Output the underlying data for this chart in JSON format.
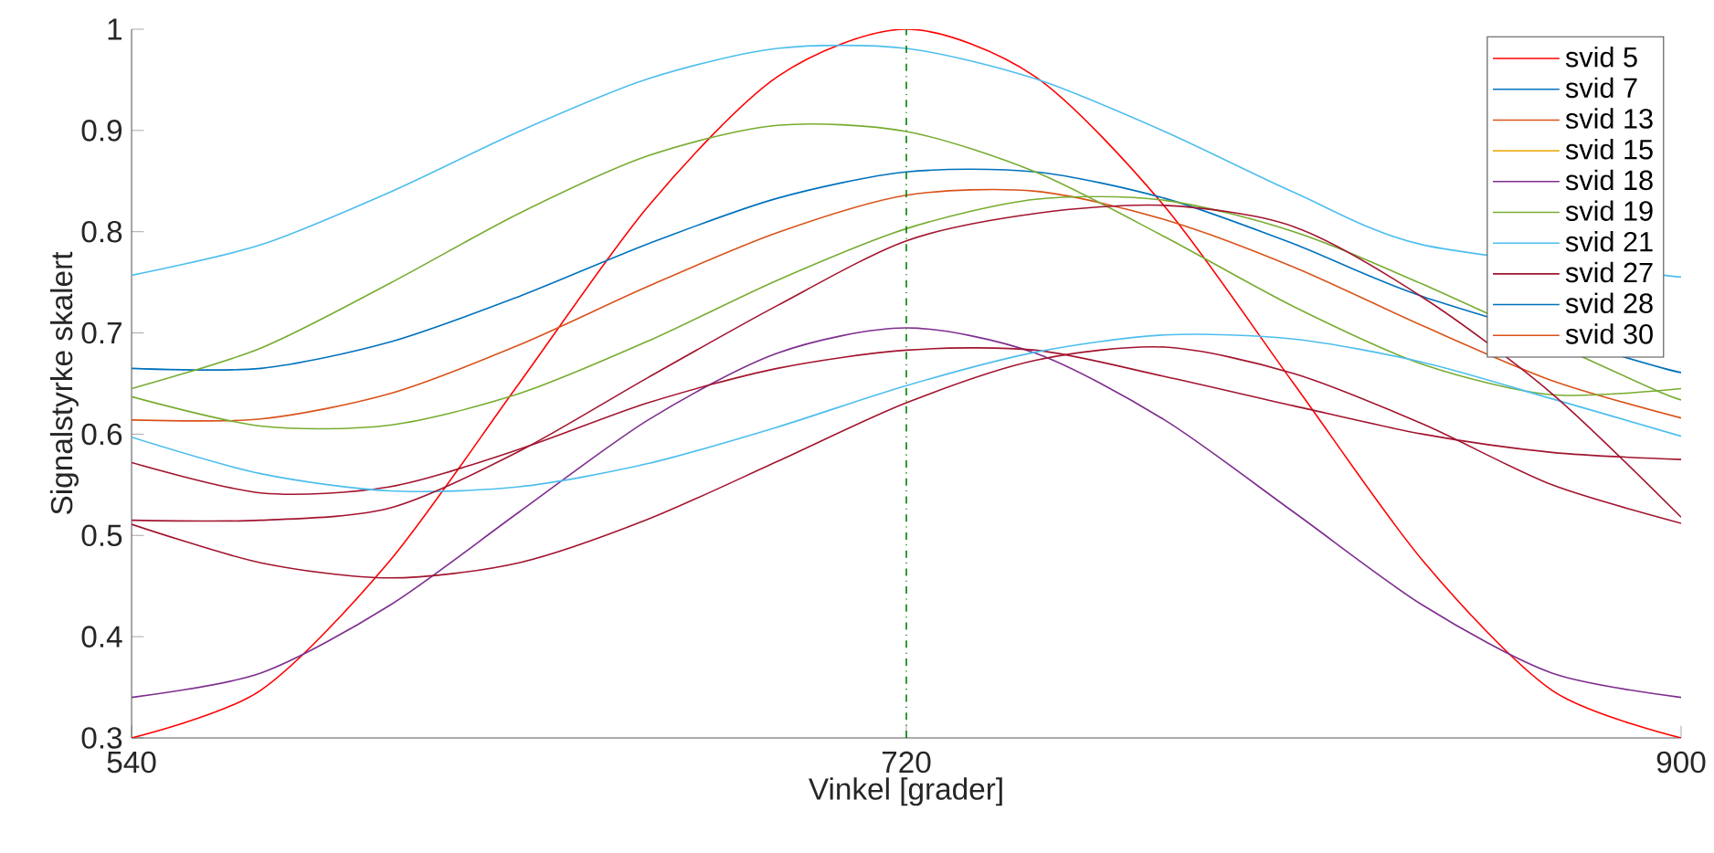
{
  "chart_data": {
    "type": "line",
    "xlabel": "Vinkel [grader]",
    "ylabel": "Signalstyrke skalert",
    "x": [
      540,
      570,
      600,
      630,
      660,
      690,
      720,
      750,
      780,
      810,
      840,
      870,
      900
    ],
    "xlim": [
      540,
      900
    ],
    "xticks": [
      540,
      720,
      900
    ],
    "ylim": [
      0.3,
      1
    ],
    "yticks": [
      0.3,
      0.4,
      0.5,
      0.6,
      0.7,
      0.8,
      0.9,
      1
    ],
    "legend": "top right",
    "grid": false,
    "marker": "none",
    "line_style": "solid",
    "ref_lines": [
      {
        "axis": "x",
        "value": 720,
        "color": "#008000",
        "line_style": "dashdot"
      }
    ],
    "series": [
      {
        "name": "svid 5",
        "color": "#ff0000",
        "values": [
          0.3,
          0.347,
          0.475,
          0.65,
          0.825,
          0.953,
          1.0,
          0.953,
          0.825,
          0.65,
          0.475,
          0.347,
          0.3
        ]
      },
      {
        "name": "svid 7",
        "color": "#0072bd",
        "x": [
          540,
          570,
          600,
          630,
          660,
          690,
          720,
          750,
          780,
          810,
          840,
          896,
          900
        ],
        "values": [
          0.665,
          0.665,
          0.691,
          0.736,
          0.788,
          0.833,
          0.859,
          0.859,
          0.833,
          0.788,
          0.736,
          0.665,
          0.665
        ]
      },
      {
        "name": "svid 13",
        "color": "#d95319",
        "values": [
          0.614,
          0.615,
          0.64,
          0.688,
          0.746,
          0.799,
          0.836,
          0.84,
          0.812,
          0.765,
          0.707,
          0.653,
          0.616
        ]
      },
      {
        "name": "svid 15",
        "color": "#edb120",
        "values": [
          null,
          null,
          null,
          null,
          null,
          null,
          null,
          null,
          null,
          null,
          null,
          null,
          null
        ]
      },
      {
        "name": "svid 18",
        "color": "#7e2f8e",
        "values": [
          0.34,
          0.364,
          0.431,
          0.523,
          0.614,
          0.68,
          0.705,
          0.68,
          0.614,
          0.523,
          0.431,
          0.364,
          0.34
        ]
      },
      {
        "name": "svid 19",
        "color": "#77ac30",
        "values": [
          0.645,
          0.685,
          0.749,
          0.818,
          0.875,
          0.905,
          0.899,
          0.859,
          0.795,
          0.726,
          0.669,
          0.639,
          0.645
        ]
      },
      {
        "name": "svid 21",
        "color": "#4dbeee",
        "x": [
          540,
          570,
          600,
          630,
          660,
          690,
          720,
          750,
          780,
          810,
          840,
          896,
          900
        ],
        "values": [
          0.757,
          0.787,
          0.839,
          0.899,
          0.951,
          0.981,
          0.981,
          0.951,
          0.899,
          0.839,
          0.787,
          0.757,
          0.757
        ]
      },
      {
        "name": "svid 27",
        "color": "#a2142f",
        "values": [
          0.572,
          0.542,
          0.548,
          0.585,
          0.631,
          0.665,
          0.683,
          0.683,
          0.657,
          0.628,
          0.6,
          0.582,
          0.575
        ]
      },
      {
        "name": "svid 28",
        "color": "#0072bd",
        "values": [
          null,
          null,
          null,
          null,
          null,
          null,
          null,
          null,
          null,
          null,
          null,
          null,
          null
        ]
      },
      {
        "name": "svid 30",
        "color": "#d95319",
        "values": [
          null,
          null,
          null,
          null,
          null,
          null,
          null,
          null,
          null,
          null,
          null,
          null,
          null
        ]
      },
      {
        "color": "#77ac30",
        "x": [
          540,
          570,
          600,
          630,
          660,
          690,
          720,
          750,
          780,
          810,
          840,
          896,
          900
        ],
        "values": [
          0.637,
          0.608,
          0.609,
          0.64,
          0.692,
          0.752,
          0.803,
          0.832,
          0.831,
          0.8,
          0.748,
          0.64,
          0.64
        ]
      },
      {
        "color": "#4dbeee",
        "values": [
          0.597,
          0.561,
          0.544,
          0.548,
          0.571,
          0.607,
          0.648,
          0.681,
          0.698,
          0.694,
          0.671,
          0.635,
          0.598
        ]
      },
      {
        "color": "#a2142f",
        "values": [
          0.515,
          0.515,
          0.527,
          0.583,
          0.656,
          0.727,
          0.791,
          0.818,
          0.826,
          0.805,
          0.735,
          0.64,
          0.518
        ]
      },
      {
        "color": "#a2142f",
        "values": [
          0.511,
          0.473,
          0.458,
          0.473,
          0.516,
          0.573,
          0.631,
          0.673,
          0.686,
          0.66,
          0.61,
          0.55,
          0.512
        ]
      }
    ]
  }
}
